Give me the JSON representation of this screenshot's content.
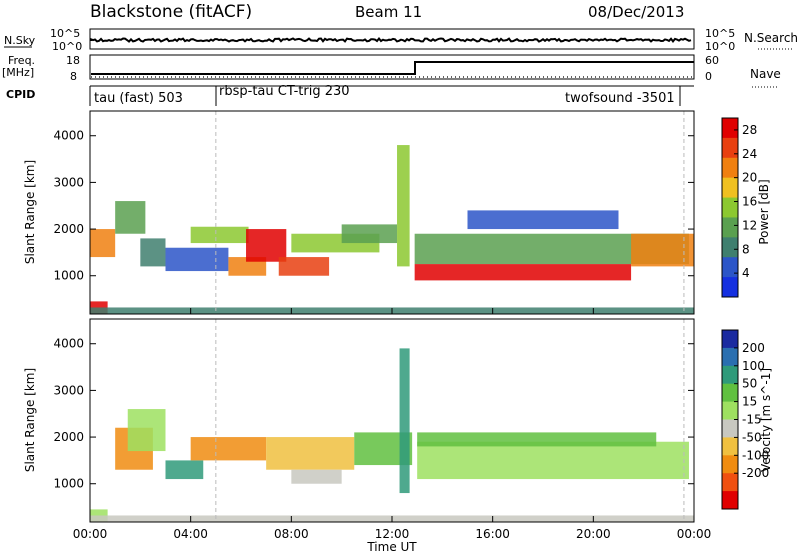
{
  "header": {
    "station": "Blackstone (fitACF)",
    "beam": "Beam 11",
    "date": "08/Dec/2013"
  },
  "left_labels": {
    "nsky": "N.Sky",
    "freq_top": "Freq.",
    "freq_unit": "[MHz]",
    "cpid": "CPID"
  },
  "right_labels": {
    "nsearch": "N.Search",
    "nave": "Nave"
  },
  "noise_axis": {
    "left_ticks": [
      "10^5",
      "10^0"
    ],
    "right_ticks": [
      "10^5",
      "10^0"
    ]
  },
  "freq_axis": {
    "left_ticks": [
      "18",
      "8"
    ],
    "right_ticks": [
      "60",
      "0"
    ]
  },
  "cpid_segments": [
    {
      "label": "tau (fast) 503",
      "start_h": 0.0,
      "end_h": 5.0
    },
    {
      "label": "rbsp-tau CT-trig 230",
      "start_h": 5.0,
      "end_h": 23.6
    },
    {
      "label": "twofsound -3501",
      "start_h": 23.6,
      "end_h": 24.0
    }
  ],
  "chart_data": [
    {
      "type": "heatmap",
      "panel": "power",
      "ylabel": "Slant Range [km]",
      "yticks": [
        "1000",
        "2000",
        "3000",
        "4000"
      ],
      "ylim": [
        180,
        4530
      ],
      "xlim": [
        0,
        24
      ],
      "colorbar": {
        "label": "Power [dB]",
        "ticks": [
          "4",
          "8",
          "12",
          "16",
          "20",
          "24",
          "28"
        ],
        "range": [
          0,
          30
        ],
        "colors": [
          "#1530e0",
          "#2b55c8",
          "#3f7f6f",
          "#5aa050",
          "#8cc830",
          "#f0c020",
          "#f08010",
          "#e84010",
          "#e00000"
        ]
      },
      "regions": [
        {
          "t0": 0.0,
          "t1": 0.7,
          "r0": 180,
          "r1": 450,
          "value": 30
        },
        {
          "t0": 0.0,
          "t1": 1.0,
          "r0": 1400,
          "r1": 2000,
          "value": 20
        },
        {
          "t0": 1.0,
          "t1": 2.2,
          "r0": 1900,
          "r1": 2600,
          "value": 12
        },
        {
          "t0": 2.0,
          "t1": 3.0,
          "r0": 1200,
          "r1": 1800,
          "value": 8
        },
        {
          "t0": 3.0,
          "t1": 5.5,
          "r0": 1100,
          "r1": 1600,
          "value": 6
        },
        {
          "t0": 4.0,
          "t1": 6.3,
          "r0": 1700,
          "r1": 2050,
          "value": 16
        },
        {
          "t0": 5.5,
          "t1": 7.0,
          "r0": 1000,
          "r1": 1400,
          "value": 22
        },
        {
          "t0": 6.2,
          "t1": 7.8,
          "r0": 1300,
          "r1": 2000,
          "value": 29
        },
        {
          "t0": 7.5,
          "t1": 9.5,
          "r0": 1000,
          "r1": 1400,
          "value": 24
        },
        {
          "t0": 8.0,
          "t1": 11.5,
          "r0": 1500,
          "r1": 1900,
          "value": 14
        },
        {
          "t0": 10.0,
          "t1": 12.2,
          "r0": 1700,
          "r1": 2100,
          "value": 12
        },
        {
          "t0": 12.2,
          "t1": 12.7,
          "r0": 1200,
          "r1": 3800,
          "value": 16
        },
        {
          "t0": 12.9,
          "t1": 21.5,
          "r0": 900,
          "r1": 1250,
          "value": 27
        },
        {
          "t0": 12.9,
          "t1": 23.8,
          "r0": 1250,
          "r1": 1900,
          "value": 12
        },
        {
          "t0": 15.0,
          "t1": 21.0,
          "r0": 2000,
          "r1": 2400,
          "value": 6
        },
        {
          "t0": 21.5,
          "t1": 24.0,
          "r0": 1200,
          "r1": 1900,
          "value": 20
        },
        {
          "t0": 0.0,
          "t1": 24.0,
          "r0": 180,
          "r1": 320,
          "value": 8
        }
      ]
    },
    {
      "type": "heatmap",
      "panel": "velocity",
      "ylabel": "Slant Range [km]",
      "yticks": [
        "1000",
        "2000",
        "3000",
        "4000"
      ],
      "ylim": [
        180,
        4530
      ],
      "xlim": [
        0,
        24
      ],
      "xlabel": "Time UT",
      "xticks": [
        "00:00",
        "04:00",
        "08:00",
        "12:00",
        "16:00",
        "20:00",
        "00:00"
      ],
      "colorbar": {
        "label": "Velocity [m s^-1]",
        "ticks": [
          "200",
          "100",
          "50",
          "15",
          "-15",
          "-50",
          "-100",
          "-200"
        ],
        "colors": [
          "#1a2aa0",
          "#2a6fb0",
          "#2f9a7a",
          "#60c040",
          "#9ee060",
          "#c8c8c0",
          "#f0c040",
          "#f08c10",
          "#f05010",
          "#e00000"
        ]
      },
      "regions": [
        {
          "t0": 0.0,
          "t1": 0.7,
          "r0": 180,
          "r1": 450,
          "value": -15
        },
        {
          "t0": 1.0,
          "t1": 2.5,
          "r0": 1300,
          "r1": 2200,
          "value": -180
        },
        {
          "t0": 1.5,
          "t1": 3.0,
          "r0": 1700,
          "r1": 2600,
          "value": 0
        },
        {
          "t0": 3.0,
          "t1": 4.5,
          "r0": 1100,
          "r1": 1500,
          "value": 80
        },
        {
          "t0": 4.0,
          "t1": 7.0,
          "r0": 1500,
          "r1": 2000,
          "value": -170
        },
        {
          "t0": 7.0,
          "t1": 10.5,
          "r0": 1300,
          "r1": 2000,
          "value": -90
        },
        {
          "t0": 8.0,
          "t1": 10.0,
          "r0": 1000,
          "r1": 1300,
          "value": -40
        },
        {
          "t0": 10.5,
          "t1": 12.8,
          "r0": 1400,
          "r1": 2100,
          "value": 40
        },
        {
          "t0": 12.3,
          "t1": 12.7,
          "r0": 800,
          "r1": 3900,
          "value": 50
        },
        {
          "t0": 13.0,
          "t1": 23.8,
          "r0": 1100,
          "r1": 1900,
          "value": 0
        },
        {
          "t0": 13.0,
          "t1": 22.5,
          "r0": 1800,
          "r1": 2100,
          "value": 20
        },
        {
          "t0": 0.0,
          "t1": 24.0,
          "r0": 180,
          "r1": 320,
          "value": -40
        }
      ]
    }
  ]
}
